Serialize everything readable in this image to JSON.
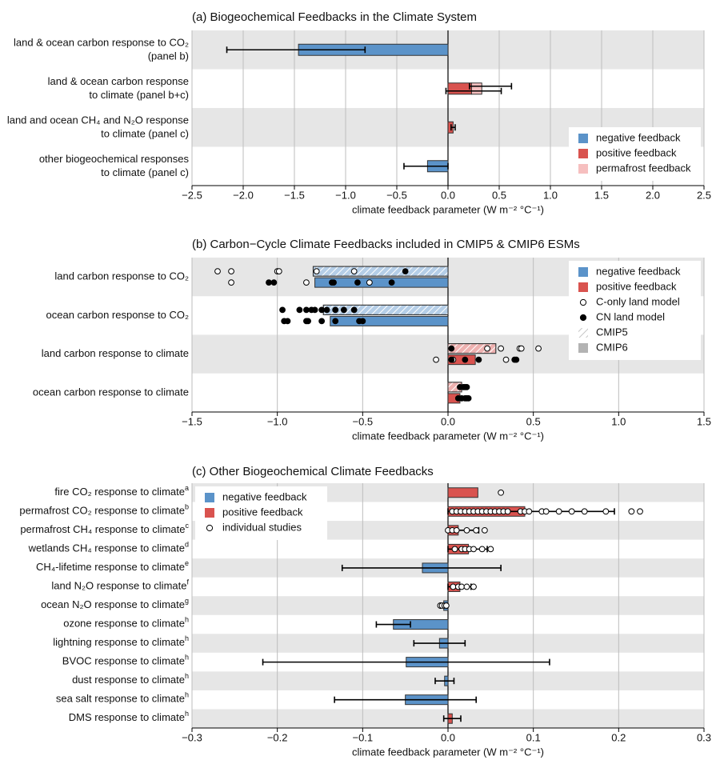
{
  "chart_data": [
    {
      "type": "stacked_hbar",
      "title": "(a) Biogeochemical Feedbacks in the Climate System",
      "xlabel": "climate feedback parameter (W m⁻² °C⁻¹)",
      "categories": [
        [
          "land & ocean carbon response to CO₂",
          "(panel b)"
        ],
        [
          "land & ocean carbon response",
          "to climate (panel b+c)"
        ],
        [
          "land and ocean CH₄ and N₂O response",
          "to climate (panel c)"
        ],
        [
          "other biogeochemical responses",
          "to climate (panel c)"
        ]
      ],
      "series": [
        {
          "name": "negative feedback",
          "color": "#5b93c9",
          "values": [
            -1.46,
            null,
            null,
            -0.2
          ],
          "intervals": [
            [
              -2.16,
              -0.81
            ],
            null,
            null,
            [
              -0.43,
              0.0
            ]
          ]
        },
        {
          "name": "positive feedback",
          "color": "#d9534f",
          "values": [
            null,
            0.23,
            0.05,
            null
          ],
          "intervals": [
            null,
            [
              -0.02,
              0.52
            ],
            [
              0.03,
              0.07
            ],
            null
          ]
        },
        {
          "name": "permafrost feedback",
          "color": "#f6bfbf",
          "stacked": true,
          "values": [
            null,
            0.1,
            null,
            null
          ],
          "intervals": [
            null,
            [
              0.21,
              0.62
            ],
            null,
            null
          ]
        }
      ],
      "xlim": [
        -2.5,
        2.5
      ],
      "xticks": [
        {
          "value": -2.5,
          "label": "−2.5"
        },
        {
          "value": -2.0,
          "label": "−2.0"
        },
        {
          "value": -1.5,
          "label": "−1.5"
        },
        {
          "value": -1.0,
          "label": "−1.0"
        },
        {
          "value": -0.5,
          "label": "−0.5"
        },
        {
          "value": 0,
          "label": "0.0"
        },
        0.5,
        {
          "value": 1,
          "label": "1.0"
        },
        1.5,
        {
          "value": 2,
          "label": "2.0"
        },
        2.5
      ],
      "grid": true,
      "legend": "lower right"
    },
    {
      "type": "model_hbar",
      "title": "(b) Carbon−Cycle Climate Feedbacks included in CMIP5 & CMIP6 ESMs",
      "xlabel": "climate feedback parameter (W m⁻² °C⁻¹)",
      "categories": [
        "land carbon response to CO₂",
        "ocean carbon response to CO₂",
        "land carbon response to climate",
        "ocean carbon response to climate"
      ],
      "sign_labels": {
        "negative": "negative feedback",
        "positive": "positive feedback"
      },
      "colors": {
        "negative": "#5b93c9",
        "positive": "#d9534f",
        "model": "#b3b3b3"
      },
      "c_only_label": "C-only land model",
      "cn_label": "CN land model",
      "series": [
        {
          "name": "CMIP5",
          "hatch": true,
          "values": [
            -0.79,
            -0.73,
            0.28,
            0.08
          ],
          "c_only": [
            [
              -1.35,
              -1.27,
              -1.0,
              -0.99,
              -0.77,
              -0.55
            ],
            [],
            [
              0.23,
              0.31,
              0.42,
              0.43,
              0.53
            ],
            []
          ],
          "cn": [
            [
              -0.25
            ],
            [
              -0.97,
              -0.87,
              -0.83,
              -0.8,
              -0.78,
              -0.74,
              -0.71,
              -0.66,
              -0.61,
              -0.55
            ],
            [
              0.02
            ],
            [
              0.07,
              0.09,
              0.1,
              0.11
            ]
          ]
        },
        {
          "name": "CMIP6",
          "hatch": false,
          "values": [
            -0.78,
            -0.69,
            0.16,
            0.07
          ],
          "c_only": [
            [
              -1.27,
              -0.83,
              -0.46
            ],
            [],
            [
              -0.07,
              0.03,
              0.34
            ],
            []
          ],
          "cn": [
            [
              -1.05,
              -1.02,
              -0.68,
              -0.67,
              -0.53,
              -0.33
            ],
            [
              -0.96,
              -0.94,
              -0.83,
              -0.82,
              -0.74,
              -0.66,
              -0.52,
              -0.5
            ],
            [
              0.02,
              0.1,
              0.18,
              0.39,
              0.4
            ],
            [
              0.06,
              0.08,
              0.1,
              0.11,
              0.12
            ]
          ]
        }
      ],
      "xlim": [
        -1.5,
        1.5
      ],
      "xticks": [
        {
          "value": -1.5,
          "label": "−1.5"
        },
        {
          "value": -1.0,
          "label": "−1.0"
        },
        {
          "value": -0.5,
          "label": "−0.5"
        },
        {
          "value": 0,
          "label": "0.0"
        },
        0.5,
        {
          "value": 1,
          "label": "1.0"
        },
        1.5
      ],
      "grid": true,
      "legend": "upper right"
    },
    {
      "type": "study_hbar",
      "title": "(c) Other Biogeochemical Climate Feedbacks",
      "xlabel": "climate feedback parameter (W m⁻² °C⁻¹)",
      "categories": [
        {
          "label": "fire CO₂ response to climate",
          "note": "a"
        },
        {
          "label": "permafrost CO₂ response to climate",
          "note": "b"
        },
        {
          "label": "permafrost CH₄ response to climate",
          "note": "c"
        },
        {
          "label": "wetlands CH₄ response to climate",
          "note": "d"
        },
        {
          "label": "CH₄-lifetime response to climate",
          "note": "e"
        },
        {
          "label": "land N₂O response to climate",
          "note": "f"
        },
        {
          "label": "ocean N₂O response to climate",
          "note": "g"
        },
        {
          "label": "ozone response to climate",
          "note": "h"
        },
        {
          "label": "lightning response to climate",
          "note": "h"
        },
        {
          "label": "BVOC response to climate",
          "note": "h"
        },
        {
          "label": "dust response to climate",
          "note": "h"
        },
        {
          "label": "sea salt response to climate",
          "note": "h"
        },
        {
          "label": "DMS response to climate",
          "note": "h"
        }
      ],
      "sign_labels": {
        "negative": "negative feedback",
        "positive": "positive feedback"
      },
      "colors": {
        "negative": "#5b93c9",
        "positive": "#d9534f"
      },
      "studies_label": "individual studies",
      "values": [
        0.035,
        0.09,
        0.012,
        0.024,
        -0.03,
        0.014,
        -0.005,
        -0.064,
        -0.01,
        -0.049,
        -0.004,
        -0.05,
        0.005
      ],
      "intervals": [
        null,
        [
          0.0,
          0.195
        ],
        [
          0.0,
          0.036
        ],
        [
          0.0,
          0.046
        ],
        [
          -0.124,
          0.062
        ],
        [
          0.0,
          0.027
        ],
        [
          -0.009,
          -0.001
        ],
        [
          -0.084,
          -0.044
        ],
        [
          -0.04,
          0.02
        ],
        [
          -0.217,
          0.119
        ],
        [
          -0.015,
          0.007
        ],
        [
          -0.133,
          0.033
        ],
        [
          -0.005,
          0.015
        ]
      ],
      "studies": [
        [
          0.062
        ],
        [
          0.005,
          0.01,
          0.015,
          0.02,
          0.025,
          0.03,
          0.035,
          0.04,
          0.045,
          0.05,
          0.055,
          0.06,
          0.065,
          0.07,
          0.085,
          0.09,
          0.095,
          0.11,
          0.115,
          0.13,
          0.145,
          0.16,
          0.185,
          0.215,
          0.225
        ],
        [
          0.0,
          0.005,
          0.01,
          0.022,
          0.033,
          0.043
        ],
        [
          0.008,
          0.016,
          0.02,
          0.025,
          0.03,
          0.04,
          0.05
        ],
        [],
        [
          0.006,
          0.012,
          0.016,
          0.022,
          0.03
        ],
        [
          -0.009,
          -0.007,
          -0.004,
          -0.002
        ],
        [],
        [],
        [],
        [],
        [],
        []
      ],
      "xlim": [
        -0.3,
        0.3
      ],
      "xticks": [
        {
          "value": -0.3,
          "label": "−0.3"
        },
        {
          "value": -0.2,
          "label": "−0.2"
        },
        {
          "value": -0.1,
          "label": "−0.1"
        },
        {
          "value": 0,
          "label": "0.0"
        },
        0.1,
        0.2,
        0.3
      ],
      "grid": true,
      "legend": "upper left"
    }
  ]
}
